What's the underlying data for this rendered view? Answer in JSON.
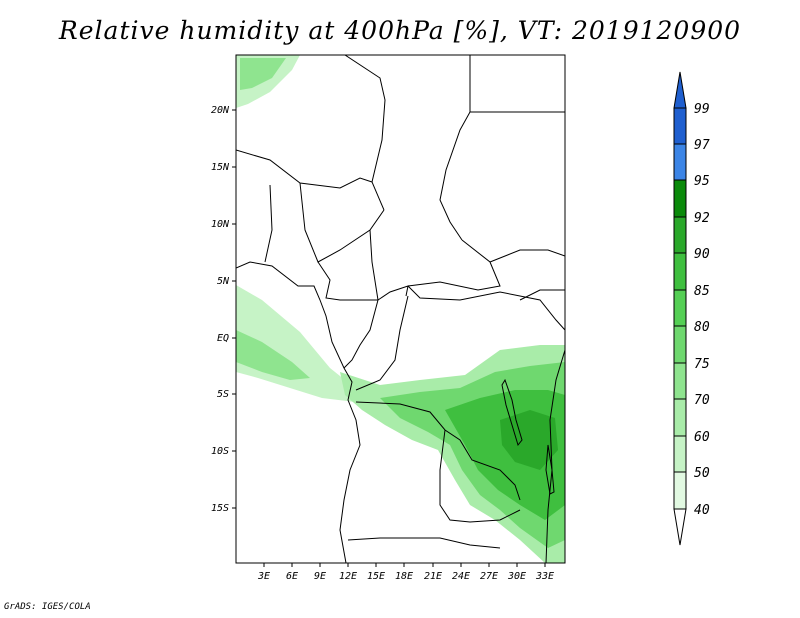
{
  "title": "Relative humidity at 400hPa [%], VT: 2019120900",
  "credit": "GrADS: IGES/COLA",
  "map": {
    "region": "Central Africa",
    "lat_labels": [
      "20N",
      "15N",
      "10N",
      "5N",
      "EQ",
      "5S",
      "10S",
      "15S"
    ],
    "lon_labels": [
      "3E",
      "6E",
      "9E",
      "12E",
      "15E",
      "18E",
      "21E",
      "24E",
      "27E",
      "30E",
      "33E"
    ]
  },
  "colorbar": {
    "levels": [
      "99",
      "97",
      "95",
      "92",
      "90",
      "85",
      "80",
      "75",
      "70",
      "60",
      "50",
      "40"
    ],
    "colors": [
      "#1f5fcf",
      "#3c85e6",
      "#0a8a0a",
      "#2aa82a",
      "#3fbf3f",
      "#55cf55",
      "#6fd86f",
      "#8fe48f",
      "#a9eca9",
      "#c6f3c6",
      "#e2f9e2",
      "#ffffff"
    ]
  }
}
